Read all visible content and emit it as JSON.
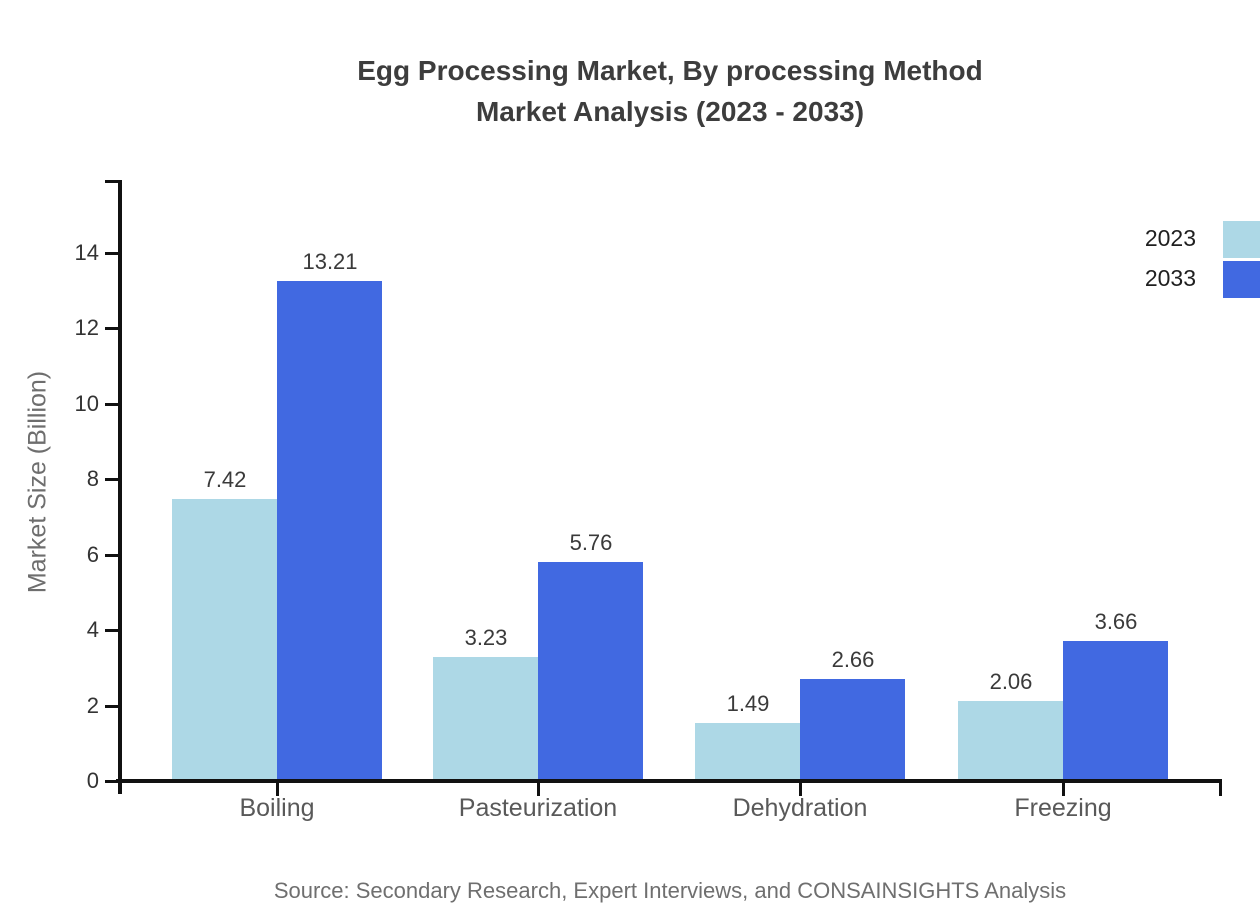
{
  "title": {
    "line1": "Egg Processing Market, By processing Method",
    "line2": "Market Analysis (2023 - 2033)"
  },
  "y_axis_title": "Market Size (Billion)",
  "source": "Source: Secondary Research, Expert Interviews, and CONSAINSIGHTS Analysis",
  "legend": [
    {
      "label": "2023",
      "color": "#add8e6"
    },
    {
      "label": "2033",
      "color": "#4169e1"
    }
  ],
  "colors": {
    "series_2023": "#add8e6",
    "series_2033": "#4169e1",
    "axis": "#111111",
    "title_text": "#3d3d3d",
    "muted_text": "#6f6f6f"
  },
  "chart_data": {
    "type": "bar",
    "title": "Egg Processing Market, By processing Method Market Analysis (2023 - 2033)",
    "categories": [
      "Boiling",
      "Pasteurization",
      "Dehydration",
      "Freezing"
    ],
    "series": [
      {
        "name": "2023",
        "color": "#add8e6",
        "values": [
          7.42,
          3.23,
          1.49,
          2.06
        ]
      },
      {
        "name": "2033",
        "color": "#4169e1",
        "values": [
          13.21,
          5.76,
          2.66,
          3.66
        ]
      }
    ],
    "xlabel": "",
    "ylabel": "Market Size (Billion)",
    "ylim": [
      0,
      16
    ],
    "yticks": [
      0,
      2,
      4,
      6,
      8,
      10,
      12,
      14
    ],
    "grid": false,
    "legend_position": "top-right",
    "value_labels": true,
    "value_label_format": "2dp"
  }
}
